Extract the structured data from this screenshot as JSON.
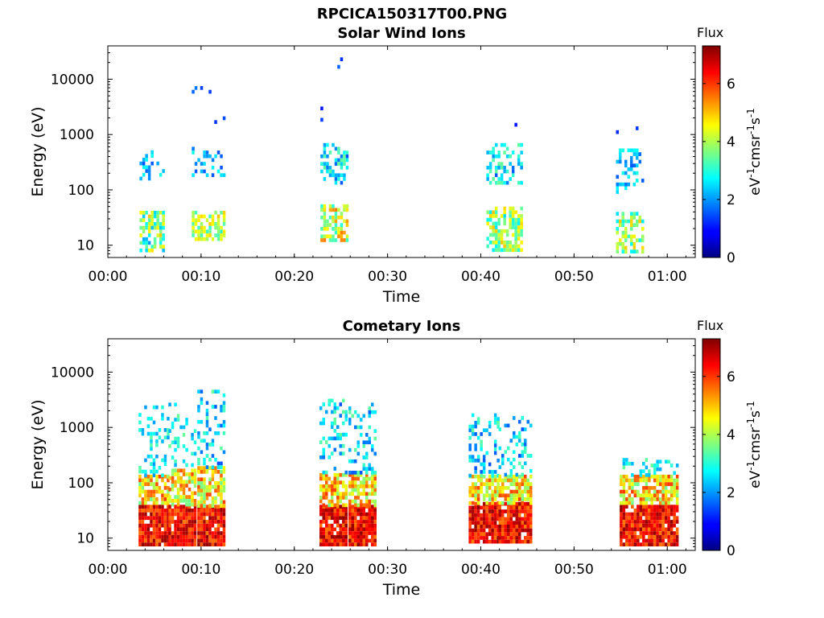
{
  "figure": {
    "title": "RPCICA150317T00.PNG"
  },
  "chart_data": [
    {
      "type": "heatmap",
      "title": "Solar Wind Ions",
      "xlabel": "Time",
      "ylabel": "Energy (eV)",
      "x_tick_labels": [
        "00:00",
        "00:10",
        "00:20",
        "00:30",
        "00:40",
        "00:50",
        "01:00"
      ],
      "x_tick_minutes": [
        0,
        10,
        20,
        30,
        40,
        50,
        60
      ],
      "xlim_minutes": [
        0,
        63
      ],
      "y_scale": "log",
      "ylim": [
        6,
        40000
      ],
      "y_tick_values": [
        10,
        100,
        1000,
        10000
      ],
      "y_tick_labels": [
        "10",
        "100",
        "1000",
        "10000"
      ],
      "colorbar": {
        "title": "Flux",
        "unit_label": "eV-1cm-2sr-1s-1",
        "range": [
          0,
          7.3
        ],
        "tick_values": [
          0,
          2,
          4,
          6
        ],
        "tick_labels": [
          "0",
          "2",
          "4",
          "6"
        ],
        "colormap": "jet"
      },
      "bursts": [
        {
          "start_min": 3.4,
          "end_min": 5.9,
          "clusters": [
            {
              "e_lo": 8,
              "e_hi": 42,
              "flux_lo": 2,
              "flux_hi": 5,
              "density": 0.6
            },
            {
              "e_lo": 160,
              "e_hi": 520,
              "flux_lo": 1.5,
              "flux_hi": 3,
              "density": 0.3
            }
          ]
        },
        {
          "start_min": 9.0,
          "end_min": 12.6,
          "clusters": [
            {
              "e_lo": 12,
              "e_hi": 42,
              "flux_lo": 3,
              "flux_hi": 5,
              "density": 0.7
            },
            {
              "e_lo": 190,
              "e_hi": 600,
              "flux_lo": 1.5,
              "flux_hi": 3,
              "density": 0.3
            },
            {
              "e_lo": 1000,
              "e_hi": 7500,
              "flux_lo": 1,
              "flux_hi": 1.8,
              "density": 0.05
            }
          ]
        },
        {
          "start_min": 22.8,
          "end_min": 25.8,
          "clusters": [
            {
              "e_lo": 12,
              "e_hi": 55,
              "flux_lo": 3,
              "flux_hi": 5.5,
              "density": 0.7
            },
            {
              "e_lo": 130,
              "e_hi": 700,
              "flux_lo": 1.5,
              "flux_hi": 3.5,
              "density": 0.4
            },
            {
              "e_lo": 1400,
              "e_hi": 29000,
              "flux_lo": 1,
              "flux_hi": 1.6,
              "density": 0.03
            }
          ]
        },
        {
          "start_min": 40.6,
          "end_min": 44.3,
          "clusters": [
            {
              "e_lo": 8,
              "e_hi": 50,
              "flux_lo": 2.5,
              "flux_hi": 5,
              "density": 0.6
            },
            {
              "e_lo": 130,
              "e_hi": 700,
              "flux_lo": 1.5,
              "flux_hi": 3.5,
              "density": 0.4
            },
            {
              "e_lo": 1000,
              "e_hi": 1900,
              "flux_lo": 1,
              "flux_hi": 1.8,
              "density": 0.05
            }
          ]
        },
        {
          "start_min": 54.5,
          "end_min": 57.4,
          "clusters": [
            {
              "e_lo": 8,
              "e_hi": 40,
              "flux_lo": 2.5,
              "flux_hi": 5,
              "density": 0.6
            },
            {
              "e_lo": 90,
              "e_hi": 560,
              "flux_lo": 1.5,
              "flux_hi": 3,
              "density": 0.3
            },
            {
              "e_lo": 1000,
              "e_hi": 1400,
              "flux_lo": 1,
              "flux_hi": 1.5,
              "density": 0.05
            }
          ]
        }
      ]
    },
    {
      "type": "heatmap",
      "title": "Cometary Ions",
      "xlabel": "Time",
      "ylabel": "Energy (eV)",
      "x_tick_labels": [
        "00:00",
        "00:10",
        "00:20",
        "00:30",
        "00:40",
        "00:50",
        "01:00"
      ],
      "x_tick_minutes": [
        0,
        10,
        20,
        30,
        40,
        50,
        60
      ],
      "xlim_minutes": [
        0,
        63
      ],
      "y_scale": "log",
      "ylim": [
        6,
        40000
      ],
      "y_tick_values": [
        10,
        100,
        1000,
        10000
      ],
      "y_tick_labels": [
        "10",
        "100",
        "1000",
        "10000"
      ],
      "colorbar": {
        "title": "Flux",
        "unit_label": "eV-1cm-2sr-1s-1",
        "range": [
          0,
          7.3
        ],
        "tick_values": [
          0,
          2,
          4,
          6
        ],
        "tick_labels": [
          "0",
          "2",
          "4",
          "6"
        ],
        "colormap": "jet"
      },
      "bursts": [
        {
          "start_min": 3.3,
          "end_min": 6.5,
          "clusters": [
            {
              "e_lo": 8,
              "e_hi": 40,
              "flux_lo": 5.5,
              "flux_hi": 7.2,
              "density": 0.95
            },
            {
              "e_lo": 40,
              "e_hi": 140,
              "flux_lo": 3.5,
              "flux_hi": 6,
              "density": 0.75
            },
            {
              "e_lo": 140,
              "e_hi": 2500,
              "flux_lo": 2,
              "flux_hi": 3.5,
              "density": 0.25
            }
          ]
        },
        {
          "start_min": 6.5,
          "end_min": 9.5,
          "clusters": [
            {
              "e_lo": 8,
              "e_hi": 40,
              "flux_lo": 5.5,
              "flux_hi": 7.2,
              "density": 0.95
            },
            {
              "e_lo": 40,
              "e_hi": 180,
              "flux_lo": 3.5,
              "flux_hi": 6,
              "density": 0.75
            },
            {
              "e_lo": 180,
              "e_hi": 2800,
              "flux_lo": 2,
              "flux_hi": 3.5,
              "density": 0.25
            }
          ]
        },
        {
          "start_min": 9.6,
          "end_min": 12.6,
          "clusters": [
            {
              "e_lo": 8,
              "e_hi": 40,
              "flux_lo": 5.5,
              "flux_hi": 7.2,
              "density": 0.95
            },
            {
              "e_lo": 40,
              "e_hi": 200,
              "flux_lo": 3.5,
              "flux_hi": 6,
              "density": 0.75
            },
            {
              "e_lo": 200,
              "e_hi": 4800,
              "flux_lo": 1.5,
              "flux_hi": 3.5,
              "density": 0.3
            }
          ]
        },
        {
          "start_min": 22.7,
          "end_min": 25.6,
          "clusters": [
            {
              "e_lo": 8,
              "e_hi": 40,
              "flux_lo": 5.5,
              "flux_hi": 7.2,
              "density": 0.95
            },
            {
              "e_lo": 40,
              "e_hi": 150,
              "flux_lo": 3.5,
              "flux_hi": 6,
              "density": 0.75
            },
            {
              "e_lo": 150,
              "e_hi": 3300,
              "flux_lo": 1.5,
              "flux_hi": 3.5,
              "density": 0.3
            }
          ]
        },
        {
          "start_min": 25.8,
          "end_min": 28.7,
          "clusters": [
            {
              "e_lo": 8,
              "e_hi": 40,
              "flux_lo": 5.5,
              "flux_hi": 7.2,
              "density": 0.95
            },
            {
              "e_lo": 40,
              "e_hi": 150,
              "flux_lo": 3.5,
              "flux_hi": 6,
              "density": 0.75
            },
            {
              "e_lo": 150,
              "e_hi": 2800,
              "flux_lo": 1.5,
              "flux_hi": 3.5,
              "density": 0.3
            }
          ]
        },
        {
          "start_min": 38.7,
          "end_min": 41.8,
          "clusters": [
            {
              "e_lo": 8,
              "e_hi": 45,
              "flux_lo": 5.5,
              "flux_hi": 7.2,
              "density": 0.95
            },
            {
              "e_lo": 45,
              "e_hi": 140,
              "flux_lo": 3.5,
              "flux_hi": 6,
              "density": 0.75
            },
            {
              "e_lo": 140,
              "e_hi": 1800,
              "flux_lo": 1.5,
              "flux_hi": 3.5,
              "density": 0.3
            }
          ]
        },
        {
          "start_min": 41.9,
          "end_min": 45.3,
          "clusters": [
            {
              "e_lo": 8,
              "e_hi": 45,
              "flux_lo": 5.5,
              "flux_hi": 7.2,
              "density": 0.95
            },
            {
              "e_lo": 45,
              "e_hi": 140,
              "flux_lo": 3.5,
              "flux_hi": 6,
              "density": 0.75
            },
            {
              "e_lo": 140,
              "e_hi": 1600,
              "flux_lo": 1.5,
              "flux_hi": 3.5,
              "density": 0.3
            }
          ]
        },
        {
          "start_min": 54.9,
          "end_min": 58.1,
          "clusters": [
            {
              "e_lo": 8,
              "e_hi": 40,
              "flux_lo": 5.5,
              "flux_hi": 7.2,
              "density": 0.95
            },
            {
              "e_lo": 40,
              "e_hi": 140,
              "flux_lo": 3.5,
              "flux_hi": 6,
              "density": 0.7
            },
            {
              "e_lo": 140,
              "e_hi": 280,
              "flux_lo": 2,
              "flux_hi": 3.5,
              "density": 0.3
            }
          ]
        },
        {
          "start_min": 58.2,
          "end_min": 61.0,
          "clusters": [
            {
              "e_lo": 8,
              "e_hi": 40,
              "flux_lo": 5.5,
              "flux_hi": 7.2,
              "density": 0.95
            },
            {
              "e_lo": 40,
              "e_hi": 140,
              "flux_lo": 3.5,
              "flux_hi": 6,
              "density": 0.7
            },
            {
              "e_lo": 140,
              "e_hi": 260,
              "flux_lo": 2,
              "flux_hi": 3.5,
              "density": 0.3
            }
          ]
        }
      ]
    }
  ]
}
